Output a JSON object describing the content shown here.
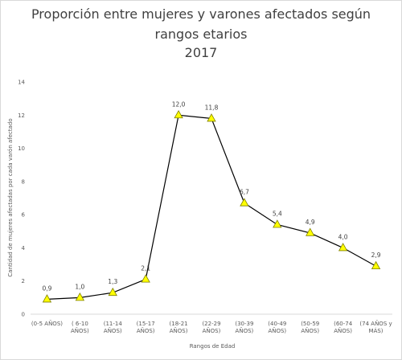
{
  "chart_data": {
    "type": "line",
    "title": [
      "Proporción entre mujeres y varones afectados según",
      "rangos etarios",
      "2017"
    ],
    "xlabel": "Rangos de Edad",
    "ylabel": "Cantidad de mujeres afectadas por cada varón afectado",
    "ylim": [
      0,
      14
    ],
    "yticks": [
      "0",
      "2",
      "4",
      "6",
      "8",
      "10",
      "12",
      "14"
    ],
    "grid": false,
    "categories": [
      [
        "(0-5 AÑOS)"
      ],
      [
        "( 6-10",
        "AÑOS)"
      ],
      [
        "(11-14",
        "AÑOS)"
      ],
      [
        "(15-17",
        "AÑOS)"
      ],
      [
        "(18-21",
        "AÑOS)"
      ],
      [
        "(22-29",
        "AÑOS)"
      ],
      [
        "(30-39",
        "AÑOS)"
      ],
      [
        "(40-49",
        "AÑOS)"
      ],
      [
        "(50-59",
        "AÑOS)"
      ],
      [
        "(60-74",
        "AÑOS)"
      ],
      [
        "(74 AÑOS y",
        "MÁS)"
      ]
    ],
    "values": [
      0.9,
      1.0,
      1.3,
      2.1,
      12.0,
      11.8,
      6.7,
      5.4,
      4.9,
      4.0,
      2.9
    ],
    "data_labels": [
      "0,9",
      "1,0",
      "1,3",
      "2,1",
      "12,0",
      "11,8",
      "6,7",
      "5,4",
      "4,9",
      "4,0",
      "2,9"
    ],
    "line_color": "#000000",
    "marker": "triangle",
    "marker_fill": "#ffff00",
    "marker_stroke": "#7f7f00",
    "axis_color": "#d9d9d9"
  }
}
